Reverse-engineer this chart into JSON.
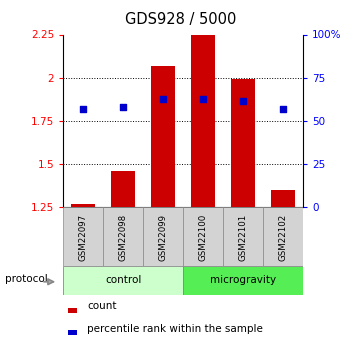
{
  "title": "GDS928 / 5000",
  "samples": [
    "GSM22097",
    "GSM22098",
    "GSM22099",
    "GSM22100",
    "GSM22101",
    "GSM22102"
  ],
  "bar_heights": [
    1.265,
    1.46,
    2.07,
    2.25,
    1.99,
    1.35
  ],
  "blue_dots_y": [
    1.82,
    1.83,
    1.875,
    1.875,
    1.865,
    1.82
  ],
  "ylim_left": [
    1.25,
    2.25
  ],
  "ylim_right": [
    0,
    100
  ],
  "yticks_left": [
    1.25,
    1.5,
    1.75,
    2.0,
    2.25
  ],
  "yticks_right": [
    0,
    25,
    50,
    75,
    100
  ],
  "ytick_labels_left": [
    "1.25",
    "1.5",
    "1.75",
    "2",
    "2.25"
  ],
  "ytick_labels_right": [
    "0",
    "25",
    "50",
    "75",
    "100%"
  ],
  "bar_color": "#cc0000",
  "dot_color": "#0000cc",
  "bar_bottom": 1.25,
  "ctrl_color": "#ccffcc",
  "micro_color": "#44dd44",
  "ctrl_color_light": "#ddffdd",
  "micro_color_light": "#55ee55",
  "legend_count_label": "count",
  "legend_pct_label": "percentile rank within the sample",
  "protocol_label": "protocol",
  "dotted_yticks": [
    1.5,
    1.75,
    2.0
  ],
  "bar_width": 0.6
}
